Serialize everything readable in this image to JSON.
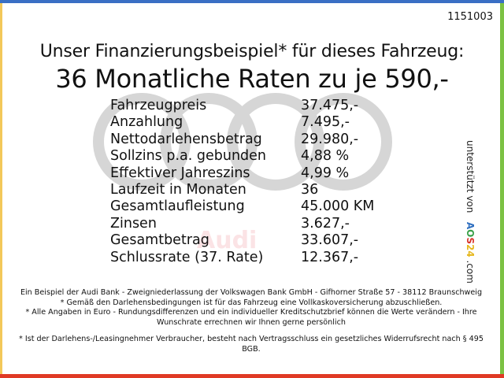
{
  "ref_number": "1151003",
  "title_line1": "Unser Finanzierungsbeispiel* für dieses Fahrzeug:",
  "title_line2": "36 Monatliche Raten zu je 590,-",
  "watermark_logo": "Audi",
  "rows": [
    {
      "label": "Fahrzeugpreis",
      "value": "37.475,-"
    },
    {
      "label": "Anzahlung",
      "value": "7.495,-"
    },
    {
      "label": "Nettodarlehensbetrag",
      "value": "29.980,-"
    },
    {
      "label": "Sollzins p.a. gebunden",
      "value": "4,88 %"
    },
    {
      "label": "Effektiver Jahreszins",
      "value": "4,99 %"
    },
    {
      "label": "Laufzeit in Monaten",
      "value": "36"
    },
    {
      "label": "Gesamtlaufleistung",
      "value": "45.000 KM"
    },
    {
      "label": "Zinsen",
      "value": "3.627,-"
    },
    {
      "label": "Gesamtbetrag",
      "value": "33.607,-"
    },
    {
      "label": "Schlussrate (37. Rate)",
      "value": "12.367,-"
    }
  ],
  "side": {
    "text": "unterstützt von",
    "logo": "AOS24",
    "suffix": ".com"
  },
  "footer": [
    "Ein Beispiel der Audi Bank - Zweigniederlassung der Volkswagen Bank GmbH - Gifhorner Straße 57 - 38112 Braunschweig",
    "* Gemäß den Darlehensbedingungen ist für das Fahrzeug eine Vollkaskoversicherung abzuschließen.",
    "* Alle Angaben in Euro - Rundungsdifferenzen und ein individueller Kreditschutzbrief können die Werte verändern - Ihre Wunschrate errechnen wir Ihnen gerne persönlich",
    "* Ist der Darlehens-/Leasingnehmer Verbraucher, besteht nach Vertragsschluss ein gesetzliches Widerrufsrecht nach § 495 BGB."
  ],
  "colors": {
    "top": "#3a6fc4",
    "left": "#f3c85a",
    "right": "#7cc243",
    "bottom": "#e03a25",
    "rings": "#d6d6d6"
  }
}
